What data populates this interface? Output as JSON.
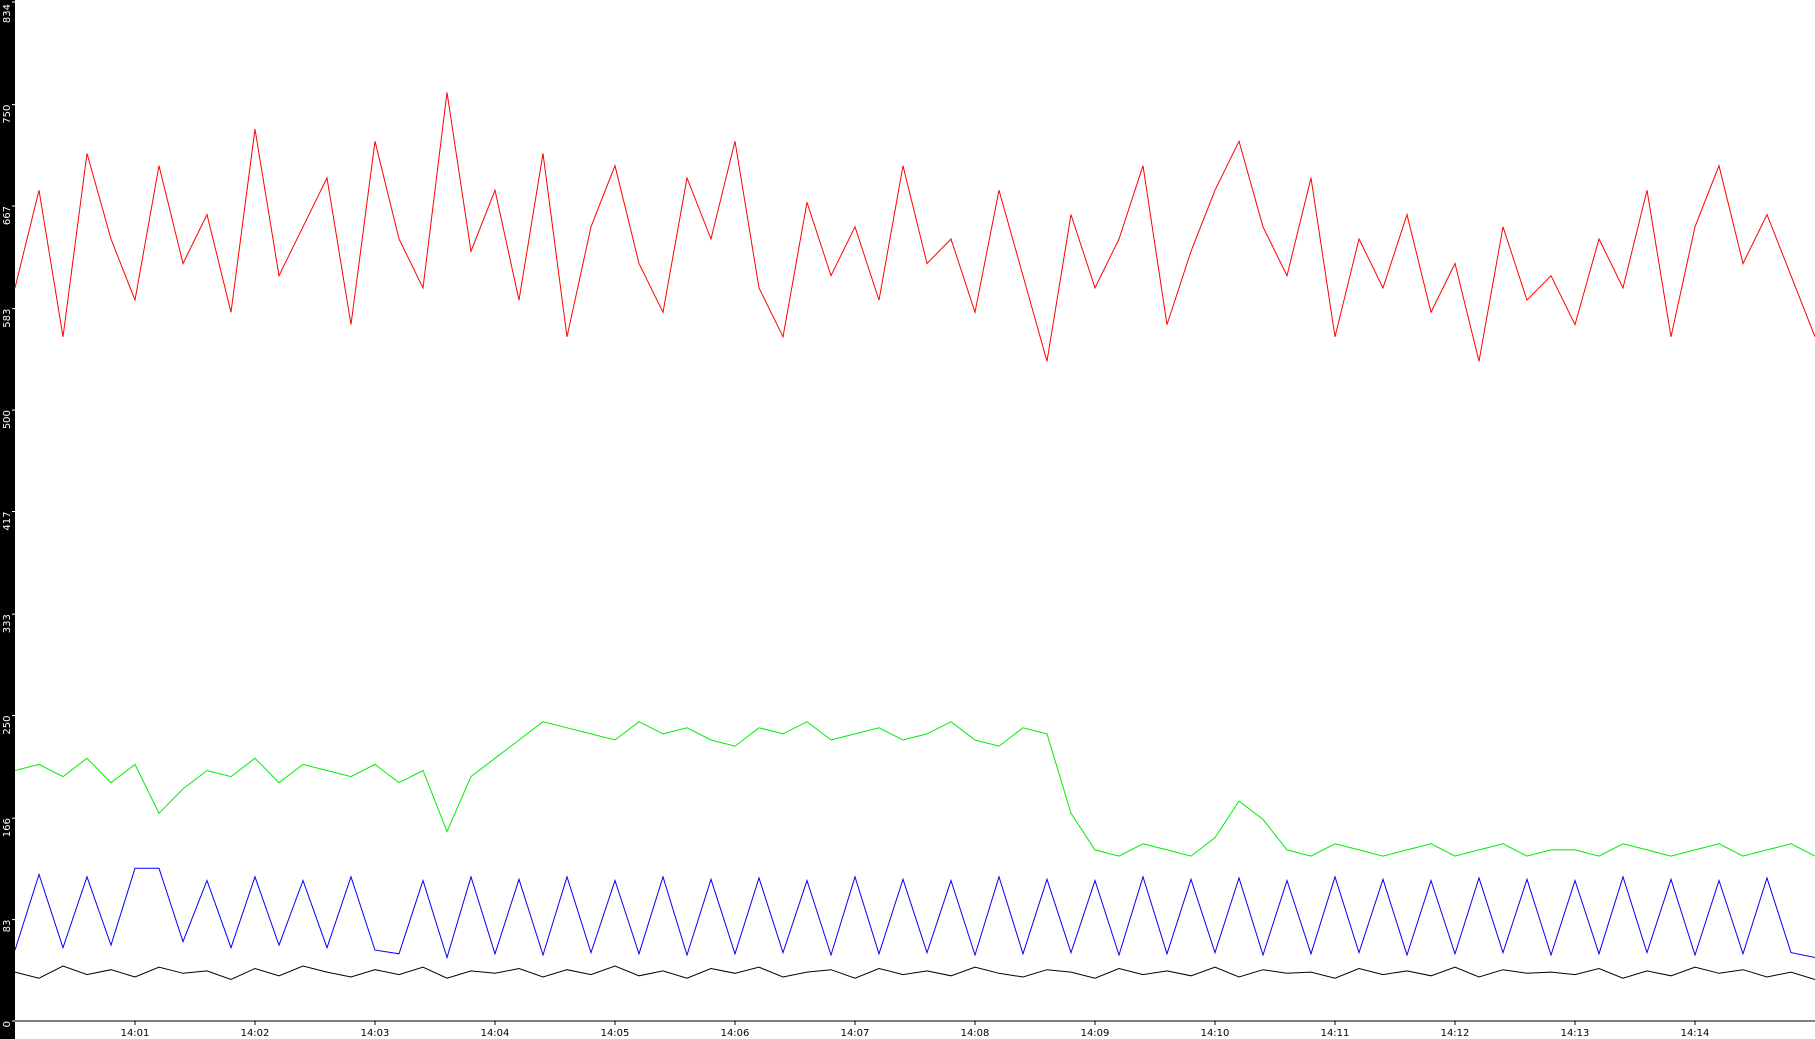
{
  "chart_data": {
    "type": "line",
    "x": [
      840,
      840.2,
      840.4,
      840.6,
      840.8,
      841,
      841.2,
      841.4,
      841.6,
      841.8,
      842,
      842.2,
      842.4,
      842.6,
      842.8,
      843,
      843.2,
      843.4,
      843.6,
      843.8,
      844,
      844.2,
      844.4,
      844.6,
      844.8,
      845,
      845.2,
      845.4,
      845.6,
      845.8,
      846,
      846.2,
      846.4,
      846.6,
      846.8,
      847,
      847.2,
      847.4,
      847.6,
      847.8,
      848,
      848.2,
      848.4,
      848.6,
      848.8,
      849,
      849.2,
      849.4,
      849.6,
      849.8,
      850,
      850.2,
      850.4,
      850.6,
      850.8,
      851,
      851.2,
      851.4,
      851.6,
      851.8,
      852,
      852.2,
      852.4,
      852.6,
      852.8,
      853,
      853.2,
      853.4,
      853.6,
      853.8,
      854,
      854.2,
      854.4,
      854.6,
      854.8,
      855
    ],
    "series": [
      {
        "color": "#ff0000",
        "values": [
          600,
          680,
          560,
          710,
          640,
          590,
          700,
          620,
          660,
          580,
          730,
          610,
          650,
          690,
          570,
          720,
          640,
          600,
          760,
          630,
          680,
          590,
          710,
          560,
          650,
          700,
          620,
          580,
          690,
          640,
          720,
          600,
          560,
          670,
          610,
          650,
          590,
          700,
          620,
          640,
          580,
          680,
          610,
          540,
          660,
          600,
          640,
          700,
          570,
          630,
          680,
          720,
          650,
          610,
          690,
          560,
          640,
          600,
          660,
          580,
          620,
          540,
          650,
          590,
          610,
          570,
          640,
          600,
          680,
          560,
          650,
          700,
          620,
          660,
          610,
          560
        ]
      },
      {
        "color": "#00ee00",
        "values": [
          205,
          210,
          200,
          215,
          195,
          210,
          170,
          190,
          205,
          200,
          215,
          195,
          210,
          205,
          200,
          210,
          195,
          205,
          155,
          200,
          215,
          230,
          245,
          240,
          235,
          230,
          245,
          235,
          240,
          230,
          225,
          240,
          235,
          245,
          230,
          235,
          240,
          230,
          235,
          245,
          230,
          225,
          240,
          235,
          170,
          140,
          135,
          145,
          140,
          135,
          150,
          180,
          165,
          140,
          135,
          145,
          140,
          135,
          140,
          145,
          135,
          140,
          145,
          135,
          140,
          140,
          135,
          145,
          140,
          135,
          140,
          145,
          135,
          140,
          145,
          135
        ]
      },
      {
        "color": "#0000ff",
        "values": [
          58,
          120,
          60,
          118,
          62,
          125,
          125,
          65,
          115,
          60,
          118,
          62,
          115,
          60,
          118,
          58,
          55,
          115,
          52,
          118,
          55,
          116,
          54,
          118,
          56,
          115,
          55,
          118,
          54,
          116,
          55,
          117,
          56,
          115,
          54,
          118,
          55,
          116,
          56,
          115,
          54,
          118,
          55,
          116,
          56,
          115,
          54,
          118,
          55,
          116,
          56,
          117,
          54,
          115,
          55,
          118,
          56,
          116,
          54,
          115,
          55,
          117,
          56,
          116,
          54,
          115,
          55,
          118,
          56,
          116,
          54,
          115,
          55,
          117,
          56,
          52
        ]
      },
      {
        "color": "#000000",
        "values": [
          40,
          35,
          45,
          38,
          42,
          36,
          44,
          39,
          41,
          34,
          43,
          37,
          45,
          40,
          36,
          42,
          38,
          44,
          35,
          41,
          39,
          43,
          36,
          42,
          38,
          45,
          37,
          41,
          35,
          43,
          39,
          44,
          36,
          40,
          42,
          35,
          43,
          38,
          41,
          37,
          44,
          39,
          36,
          42,
          40,
          35,
          43,
          38,
          41,
          37,
          44,
          36,
          42,
          39,
          40,
          35,
          43,
          38,
          41,
          37,
          44,
          36,
          42,
          39,
          40,
          38,
          43,
          35,
          41,
          37,
          44,
          39,
          42,
          36,
          40,
          34
        ]
      }
    ],
    "xlim": [
      840,
      855
    ],
    "xticks": [
      {
        "value": 841,
        "label": "14:01"
      },
      {
        "value": 842,
        "label": "14:02"
      },
      {
        "value": 843,
        "label": "14:03"
      },
      {
        "value": 844,
        "label": "14:04"
      },
      {
        "value": 845,
        "label": "14:05"
      },
      {
        "value": 846,
        "label": "14:06"
      },
      {
        "value": 847,
        "label": "14:07"
      },
      {
        "value": 848,
        "label": "14:08"
      },
      {
        "value": 849,
        "label": "14:09"
      },
      {
        "value": 850,
        "label": "14:10"
      },
      {
        "value": 851,
        "label": "14:11"
      },
      {
        "value": 852,
        "label": "14:12"
      },
      {
        "value": 853,
        "label": "14:13"
      },
      {
        "value": 854,
        "label": "14:14"
      }
    ],
    "ylim": [
      0,
      834
    ],
    "yticks": [
      0,
      83,
      166,
      250,
      333,
      417,
      500,
      583,
      667,
      750,
      834
    ],
    "grid": false
  }
}
